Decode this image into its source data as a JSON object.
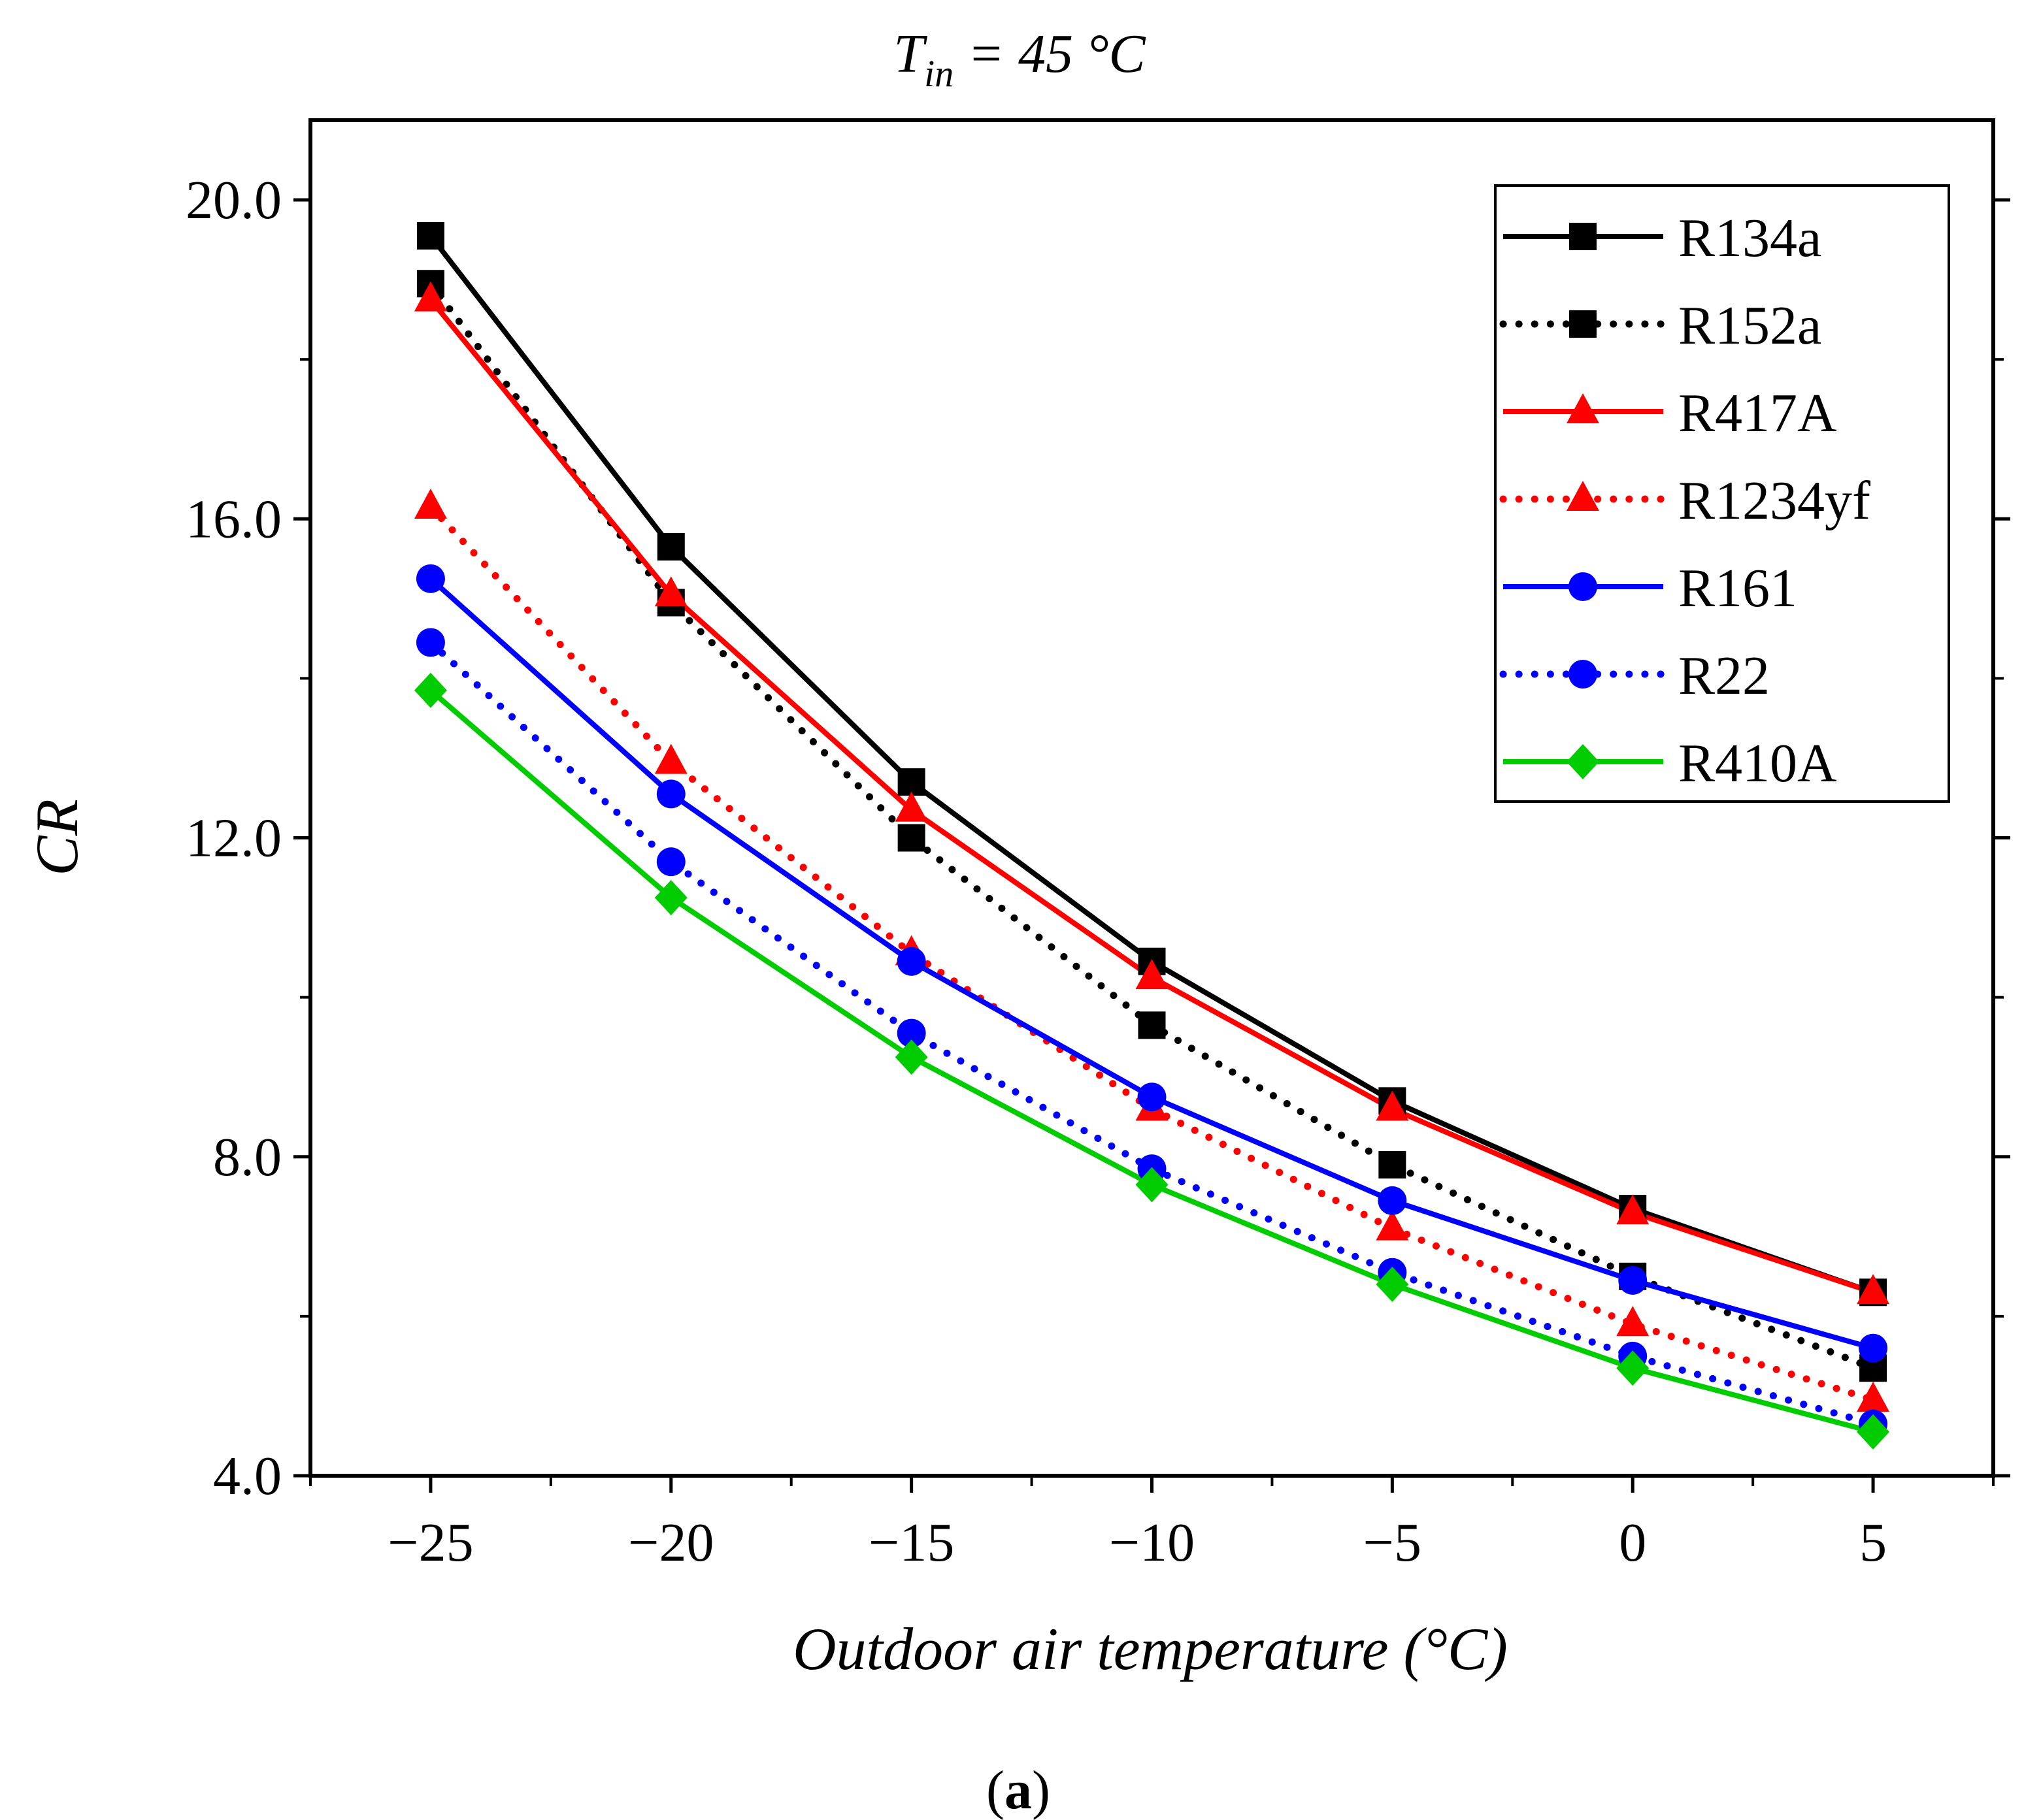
{
  "figure": {
    "panel_label_open": "(",
    "panel_label_letter": "a",
    "panel_label_close": ")"
  },
  "chart_data": {
    "type": "line",
    "title_symbol": "T",
    "title_subscript": "in",
    "title_rest": " = 45 °C",
    "xlabel": "Outdoor air temperature (°C)",
    "ylabel": "CR",
    "x": [
      -25,
      -20,
      -15,
      -10,
      -5,
      0,
      5
    ],
    "xlim": [
      -27.5,
      7.5
    ],
    "ylim": [
      4.0,
      21.0
    ],
    "x_ticks": [
      -25,
      -20,
      -15,
      -10,
      -5,
      0,
      5
    ],
    "x_tick_labels": [
      "−25",
      "−20",
      "−15",
      "−10",
      "−5",
      "0",
      "5"
    ],
    "y_ticks": [
      4.0,
      8.0,
      12.0,
      16.0,
      20.0
    ],
    "y_tick_labels": [
      "4.0",
      "8.0",
      "12.0",
      "16.0",
      "20.0"
    ],
    "grid": false,
    "legend_position": "top-right",
    "series": [
      {
        "name": "R134a",
        "color": "#000000",
        "line": "solid",
        "marker": "square",
        "values": [
          19.55,
          15.65,
          12.7,
          10.45,
          8.7,
          7.35,
          6.3
        ]
      },
      {
        "name": "R152a",
        "color": "#000000",
        "line": "dotted",
        "marker": "square",
        "values": [
          18.95,
          14.95,
          12.0,
          9.65,
          7.9,
          6.5,
          5.35
        ]
      },
      {
        "name": "R417A",
        "color": "#ff0000",
        "line": "solid",
        "marker": "triangle",
        "values": [
          18.75,
          15.05,
          12.35,
          10.25,
          8.6,
          7.3,
          6.3
        ]
      },
      {
        "name": "R1234yf",
        "color": "#ff0000",
        "line": "dotted",
        "marker": "triangle",
        "values": [
          16.15,
          12.95,
          10.55,
          8.6,
          7.1,
          5.9,
          4.95
        ]
      },
      {
        "name": "R161",
        "color": "#0000ff",
        "line": "solid",
        "marker": "circle",
        "values": [
          15.25,
          12.55,
          10.45,
          8.75,
          7.45,
          6.45,
          5.6
        ]
      },
      {
        "name": "R22",
        "color": "#0000ff",
        "line": "dotted",
        "marker": "circle",
        "values": [
          14.45,
          11.7,
          9.55,
          7.85,
          6.55,
          5.5,
          4.65
        ]
      },
      {
        "name": "R410A",
        "color": "#00cc00",
        "line": "solid",
        "marker": "diamond",
        "values": [
          13.85,
          11.25,
          9.25,
          7.65,
          6.4,
          5.35,
          4.55
        ]
      }
    ]
  }
}
